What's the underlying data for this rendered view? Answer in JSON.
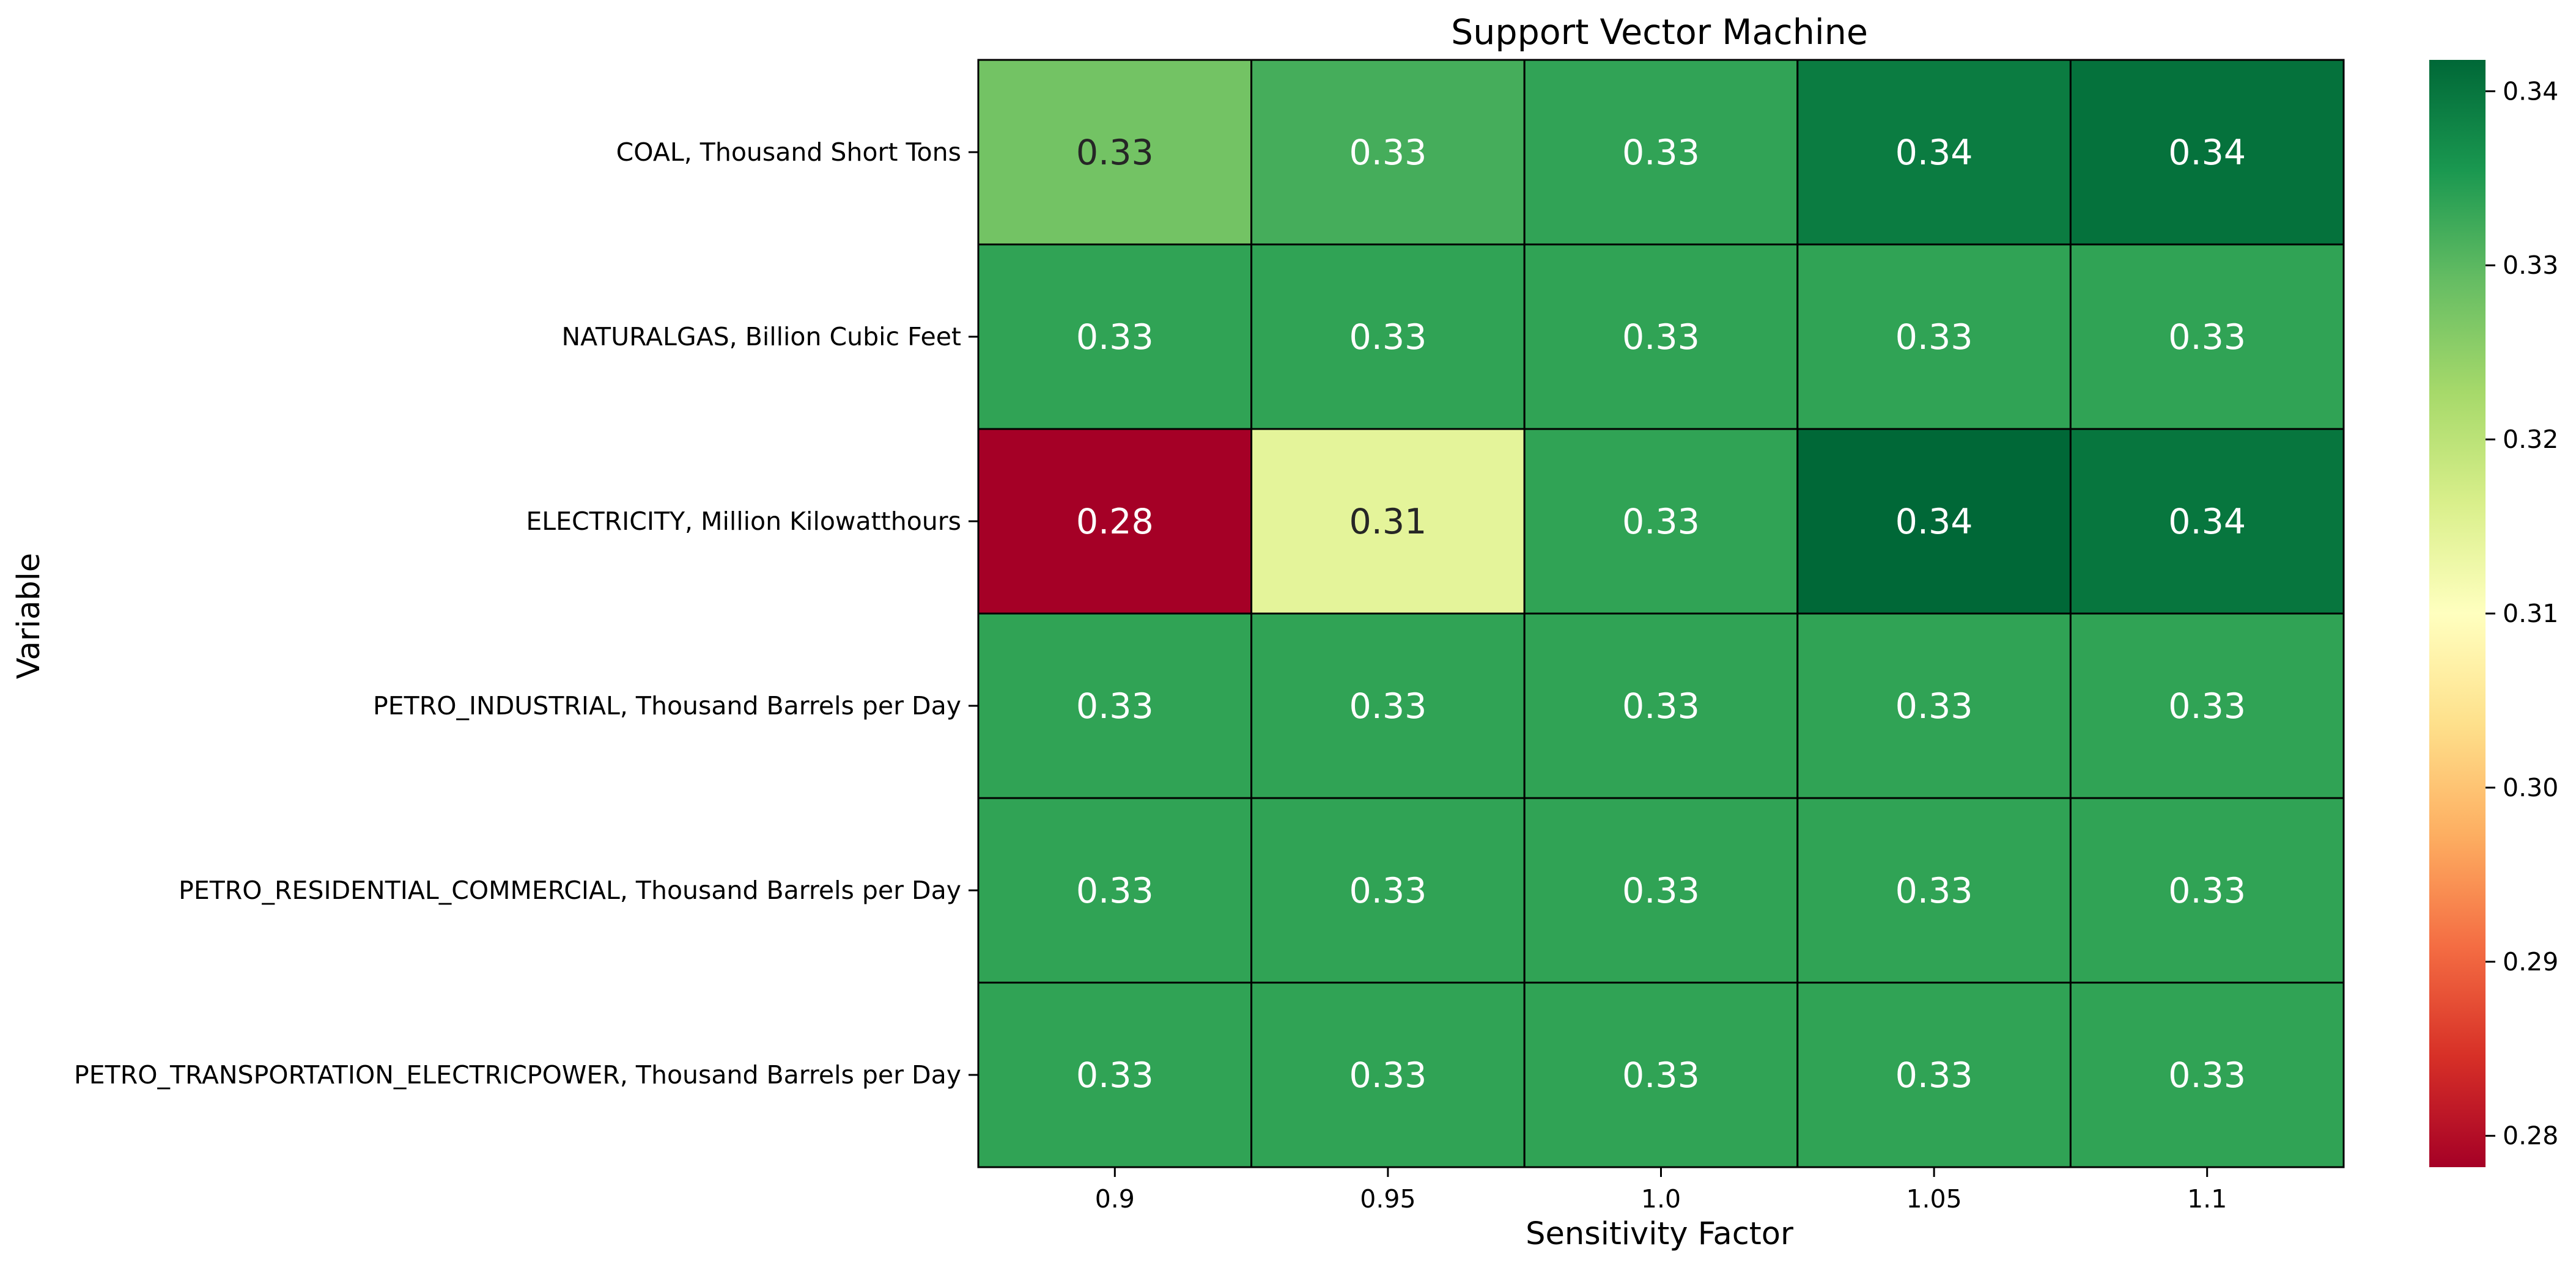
{
  "chart_data": {
    "type": "heatmap",
    "title": "Support Vector Machine",
    "xlabel": "Sensitivity Factor",
    "ylabel": "Variable",
    "x_categories": [
      "0.9",
      "0.95",
      "1.0",
      "1.05",
      "1.1"
    ],
    "y_categories": [
      "COAL, Thousand Short Tons",
      "NATURALGAS, Billion Cubic Feet",
      "ELECTRICITY, Million Kilowatthours",
      "PETRO_INDUSTRIAL, Thousand Barrels per Day",
      "PETRO_RESIDENTIAL_COMMERCIAL, Thousand Barrels per Day",
      "PETRO_TRANSPORTATION_ELECTRICPOWER, Thousand Barrels per Day"
    ],
    "values": [
      [
        0.3278,
        0.3318,
        0.3335,
        0.3392,
        0.3405
      ],
      [
        0.3336,
        0.3336,
        0.3336,
        0.3336,
        0.3336
      ],
      [
        0.2782,
        0.3145,
        0.3336,
        0.3418,
        0.34
      ],
      [
        0.3336,
        0.3336,
        0.3336,
        0.3336,
        0.3336
      ],
      [
        0.3336,
        0.3336,
        0.3336,
        0.3336,
        0.3336
      ],
      [
        0.3336,
        0.3336,
        0.3336,
        0.3336,
        0.3336
      ]
    ],
    "cell_labels": [
      [
        "0.33",
        "0.33",
        "0.33",
        "0.34",
        "0.34"
      ],
      [
        "0.33",
        "0.33",
        "0.33",
        "0.33",
        "0.33"
      ],
      [
        "0.28",
        "0.31",
        "0.33",
        "0.34",
        "0.34"
      ],
      [
        "0.33",
        "0.33",
        "0.33",
        "0.33",
        "0.33"
      ],
      [
        "0.33",
        "0.33",
        "0.33",
        "0.33",
        "0.33"
      ],
      [
        "0.33",
        "0.33",
        "0.33",
        "0.33",
        "0.33"
      ]
    ],
    "colormap": "RdYlGn",
    "vmin": 0.2782,
    "vmax": 0.3418,
    "colorbar_ticks": [
      "0.28",
      "0.29",
      "0.30",
      "0.31",
      "0.32",
      "0.33",
      "0.34"
    ],
    "colorbar_tick_values": [
      0.28,
      0.29,
      0.3,
      0.31,
      0.32,
      0.33,
      0.34
    ]
  }
}
